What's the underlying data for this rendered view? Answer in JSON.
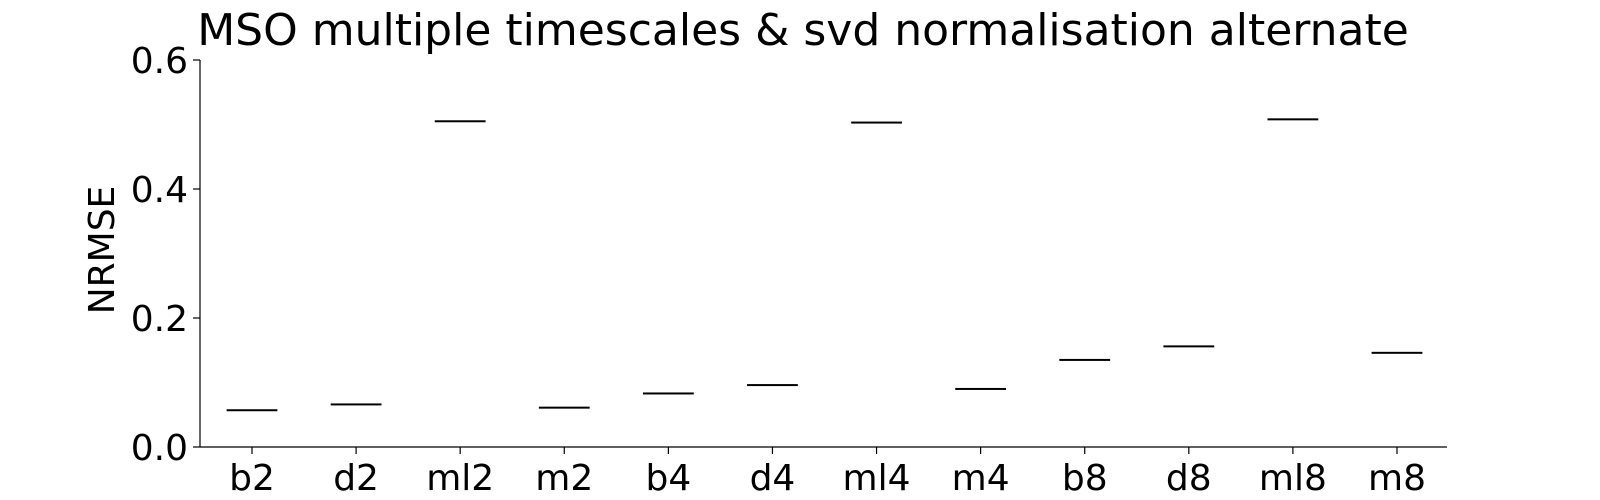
{
  "chart_data": {
    "type": "box",
    "title": "MSO multiple timescales & svd normalisation alternate",
    "xlabel": "",
    "ylabel": "NRMSE",
    "ylim": [
      0,
      0.6
    ],
    "yticks": [
      0.0,
      0.2,
      0.4,
      0.6
    ],
    "ytick_labels": [
      "0.0",
      "0.2",
      "0.4",
      "0.6"
    ],
    "categories": [
      "b2",
      "d2",
      "ml2",
      "m2",
      "b4",
      "d4",
      "ml4",
      "m4",
      "b8",
      "d8",
      "ml8",
      "m8"
    ],
    "values": [
      0.057,
      0.066,
      0.505,
      0.061,
      0.083,
      0.096,
      0.503,
      0.09,
      0.135,
      0.156,
      0.508,
      0.146
    ],
    "grid": false,
    "colors": {
      "axis": "#000000",
      "box": "#000000",
      "background": "#ffffff"
    }
  }
}
